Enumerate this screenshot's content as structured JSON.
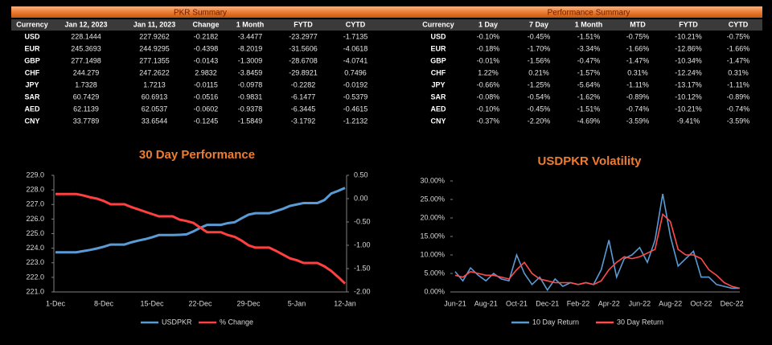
{
  "tables": [
    {
      "title": "PKR Summary",
      "columns": [
        "Currency",
        "Jan 12, 2023",
        "Jan 11, 2023",
        "Change",
        "1 Month",
        "FYTD",
        "CYTD"
      ],
      "rows": [
        [
          "USD",
          "228.1444",
          "227.9262",
          "-0.2182",
          "-3.4477",
          "-23.2977",
          "-1.7135"
        ],
        [
          "EUR",
          "245.3693",
          "244.9295",
          "-0.4398",
          "-8.2019",
          "-31.5606",
          "-4.0618"
        ],
        [
          "GBP",
          "277.1498",
          "277.1355",
          "-0.0143",
          "-1.3009",
          "-28.6708",
          "-4.0741"
        ],
        [
          "CHF",
          "244.279",
          "247.2622",
          "2.9832",
          "-3.8459",
          "-29.8921",
          "0.7496"
        ],
        [
          "JPY",
          "1.7328",
          "1.7213",
          "-0.0115",
          "-0.0978",
          "-0.2282",
          "-0.0192"
        ],
        [
          "SAR",
          "60.7429",
          "60.6913",
          "-0.0516",
          "-0.9831",
          "-6.1477",
          "-0.5379"
        ],
        [
          "AED",
          "62.1139",
          "62.0537",
          "-0.0602",
          "-0.9378",
          "-6.3445",
          "-0.4615"
        ],
        [
          "CNY",
          "33.7789",
          "33.6544",
          "-0.1245",
          "-1.5849",
          "-3.1792",
          "-1.2132"
        ]
      ]
    },
    {
      "title": "Performance Summary",
      "columns": [
        "Currency",
        "1 Day",
        "7 Day",
        "1 Month",
        "MTD",
        "FYTD",
        "CYTD"
      ],
      "rows": [
        [
          "USD",
          "-0.10%",
          "-0.45%",
          "-1.51%",
          "-0.75%",
          "-10.21%",
          "-0.75%"
        ],
        [
          "EUR",
          "-0.18%",
          "-1.70%",
          "-3.34%",
          "-1.66%",
          "-12.86%",
          "-1.66%"
        ],
        [
          "GBP",
          "-0.01%",
          "-1.56%",
          "-0.47%",
          "-1.47%",
          "-10.34%",
          "-1.47%"
        ],
        [
          "CHF",
          "1.22%",
          "0.21%",
          "-1.57%",
          "0.31%",
          "-12.24%",
          "0.31%"
        ],
        [
          "JPY",
          "-0.66%",
          "-1.25%",
          "-5.64%",
          "-1.11%",
          "-13.17%",
          "-1.11%"
        ],
        [
          "SAR",
          "-0.08%",
          "-0.54%",
          "-1.62%",
          "-0.89%",
          "-10.12%",
          "-0.89%"
        ],
        [
          "AED",
          "-0.10%",
          "-0.45%",
          "-1.51%",
          "-0.74%",
          "-10.21%",
          "-0.74%"
        ],
        [
          "CNY",
          "-0.37%",
          "-2.20%",
          "-4.69%",
          "-3.59%",
          "-9.41%",
          "-3.59%"
        ]
      ]
    }
  ],
  "chart_data": [
    {
      "type": "line",
      "title": "30 Day Performance",
      "categories": [
        "1-Dec",
        null,
        null,
        null,
        null,
        null,
        null,
        "8-Dec",
        null,
        null,
        null,
        null,
        null,
        null,
        "15-Dec",
        null,
        null,
        null,
        null,
        null,
        null,
        "22-Dec",
        null,
        null,
        null,
        null,
        null,
        null,
        "29-Dec",
        null,
        null,
        null,
        null,
        null,
        null,
        "5-Jan",
        null,
        null,
        null,
        null,
        null,
        null,
        "12-Jan"
      ],
      "series": [
        {
          "name": "USDPKR",
          "color": "#5b9bd5",
          "values": [
            223.72,
            223.72,
            223.72,
            223.72,
            223.8,
            223.88,
            223.98,
            224.1,
            224.25,
            224.25,
            224.25,
            224.4,
            224.52,
            224.62,
            224.75,
            224.9,
            224.9,
            224.9,
            224.92,
            224.95,
            225.15,
            225.4,
            225.6,
            225.6,
            225.6,
            225.72,
            225.78,
            226.05,
            226.3,
            226.4,
            226.4,
            226.4,
            226.55,
            226.7,
            226.9,
            227.0,
            227.1,
            227.1,
            227.1,
            227.3,
            227.75,
            227.93,
            228.14
          ]
        },
        {
          "name": "% Change",
          "color": "#ff4040",
          "axis": "y2",
          "values": [
            0.1,
            0.1,
            0.1,
            0.1,
            0.07,
            0.03,
            0.0,
            -0.05,
            -0.12,
            -0.12,
            -0.12,
            -0.18,
            -0.23,
            -0.28,
            -0.33,
            -0.38,
            -0.38,
            -0.38,
            -0.45,
            -0.48,
            -0.52,
            -0.62,
            -0.72,
            -0.72,
            -0.72,
            -0.78,
            -0.82,
            -0.9,
            -1.0,
            -1.05,
            -1.05,
            -1.05,
            -1.12,
            -1.2,
            -1.28,
            -1.32,
            -1.38,
            -1.38,
            -1.38,
            -1.45,
            -1.55,
            -1.68,
            -1.82
          ]
        }
      ],
      "ylim": [
        221,
        229
      ],
      "yticks": [
        {
          "value": 221,
          "label": "221.0"
        },
        {
          "value": 222,
          "label": "222.0"
        },
        {
          "value": 223,
          "label": "223.0"
        },
        {
          "value": 224,
          "label": "224.0"
        },
        {
          "value": 225,
          "label": "225.0"
        },
        {
          "value": 226,
          "label": "226.0"
        },
        {
          "value": 227,
          "label": "227.0"
        },
        {
          "value": 228,
          "label": "228.0"
        },
        {
          "value": 229,
          "label": "229.0"
        }
      ],
      "y2lim": [
        -2,
        0.5
      ],
      "y2ticks": [
        {
          "value": -2,
          "label": "-2.00"
        },
        {
          "value": -1.5,
          "label": "-1.50"
        },
        {
          "value": -1,
          "label": "-1.00"
        },
        {
          "value": -0.5,
          "label": "-0.50"
        },
        {
          "value": 0,
          "label": "0.00"
        },
        {
          "value": 0.5,
          "label": "0.50"
        }
      ],
      "legend": "bottom"
    },
    {
      "type": "line",
      "title": "USDPKR Volatility",
      "categories": [
        "Jun-21",
        null,
        null,
        null,
        "Aug-21",
        null,
        null,
        null,
        "Oct-21",
        null,
        null,
        null,
        "Dec-21",
        null,
        null,
        null,
        "Feb-22",
        null,
        null,
        null,
        "Apr-22",
        null,
        null,
        null,
        "Jun-22",
        null,
        null,
        null,
        "Aug-22",
        null,
        null,
        null,
        "Oct-22",
        null,
        null,
        null,
        "Dec-22",
        null
      ],
      "series": [
        {
          "name": "10 Day Return",
          "color": "#5b9bd5",
          "values": [
            5.5,
            3.0,
            6.5,
            4.5,
            3.0,
            5.0,
            3.5,
            3.0,
            10.0,
            5.0,
            2.0,
            4.0,
            0.5,
            3.5,
            1.5,
            2.5,
            2.0,
            2.5,
            2.0,
            6.0,
            14.0,
            4.0,
            9.0,
            10.0,
            12.0,
            8.0,
            14.0,
            26.5,
            15.0,
            7.0,
            9.0,
            11.0,
            4.0,
            4.0,
            2.0,
            1.5,
            1.0,
            1.0
          ]
        },
        {
          "name": "30 Day Return",
          "color": "#ff4b4b",
          "values": [
            4.5,
            4.0,
            5.5,
            5.0,
            4.5,
            4.5,
            4.0,
            3.5,
            6.0,
            8.0,
            5.0,
            3.5,
            3.0,
            2.5,
            2.5,
            2.5,
            2.0,
            2.5,
            2.0,
            3.0,
            6.0,
            8.0,
            9.5,
            9.0,
            9.5,
            10.5,
            11.5,
            21.0,
            19.0,
            11.5,
            10.0,
            10.0,
            9.0,
            6.0,
            4.5,
            2.5,
            1.5,
            1.0
          ]
        }
      ],
      "ylim": [
        0,
        30
      ],
      "yticks": [
        {
          "value": 0,
          "label": "0.00%"
        },
        {
          "value": 5,
          "label": "5.00%"
        },
        {
          "value": 10,
          "label": "10.00%"
        },
        {
          "value": 15,
          "label": "15.00%"
        },
        {
          "value": 20,
          "label": "20.00%"
        },
        {
          "value": 25,
          "label": "25.00%"
        },
        {
          "value": 30,
          "label": "30.00%"
        }
      ],
      "legend": "bottom"
    }
  ]
}
